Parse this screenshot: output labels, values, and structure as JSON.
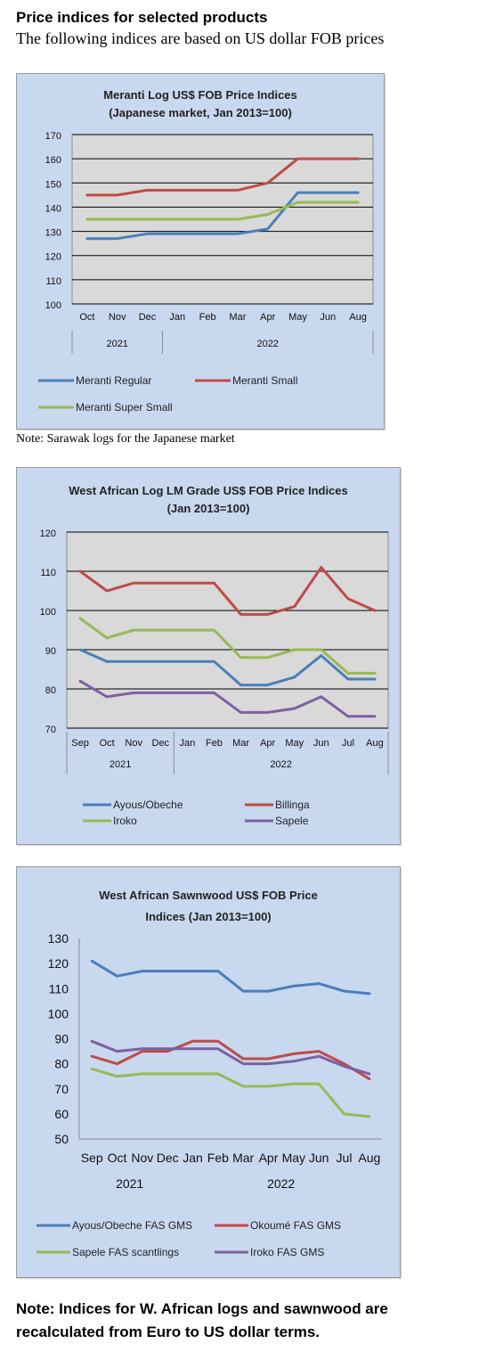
{
  "page": {
    "title": "Price indices for selected products",
    "subtitle": "The following indices are based on US dollar FOB prices",
    "note1": "Note: Sarawak logs for the Japanese market",
    "note2": "Note: Indices for W. African logs and sawnwood are recalculated from Euro to US dollar terms."
  },
  "colors": {
    "blue": "#4a7ebb",
    "red": "#be4b48",
    "green": "#98b954",
    "purple": "#7d60a0",
    "panel_bg": "#c8d8ef",
    "plot_bg": "#d9d9d9"
  },
  "chart_data": [
    {
      "type": "line",
      "title_lines": [
        "Meranti Log US$ FOB Price Indices",
        "(Japanese market, Jan 2013=100)"
      ],
      "categories": [
        "Oct",
        "Nov",
        "Dec",
        "Jan",
        "Feb",
        "Mar",
        "Apr",
        "May",
        "Jun",
        "Aug"
      ],
      "year_groups": [
        {
          "label": "2021",
          "span": 3
        },
        {
          "label": "2022",
          "span": 7
        }
      ],
      "ylim": [
        100,
        170
      ],
      "yticks": [
        100,
        110,
        120,
        130,
        140,
        150,
        160,
        170
      ],
      "grid": true,
      "legend_position": "bottom",
      "series": [
        {
          "name": "Meranti Regular",
          "color": "#4a7ebb",
          "values": [
            127,
            127,
            129,
            129,
            129,
            129,
            131,
            146,
            146,
            146
          ]
        },
        {
          "name": "Meranti Small",
          "color": "#be4b48",
          "values": [
            145,
            145,
            147,
            147,
            147,
            147,
            150,
            160,
            160,
            160
          ]
        },
        {
          "name": "Meranti Super Small",
          "color": "#98b954",
          "values": [
            135,
            135,
            135,
            135,
            135,
            135,
            137,
            142,
            142,
            142
          ]
        }
      ]
    },
    {
      "type": "line",
      "title_lines": [
        "West African Log LM Grade US$ FOB Price Indices",
        "(Jan 2013=100)"
      ],
      "categories": [
        "Sep",
        "Oct",
        "Nov",
        "Dec",
        "Jan",
        "Feb",
        "Mar",
        "Apr",
        "May",
        "Jun",
        "Jul",
        "Aug"
      ],
      "year_groups": [
        {
          "label": "2021",
          "span": 4
        },
        {
          "label": "2022",
          "span": 8
        }
      ],
      "ylim": [
        70,
        120
      ],
      "yticks": [
        70,
        80,
        90,
        100,
        110,
        120
      ],
      "grid": true,
      "legend_position": "bottom",
      "series": [
        {
          "name": "Ayous/Obeche",
          "color": "#4a7ebb",
          "values": [
            90,
            87,
            87,
            87,
            87,
            87,
            81,
            81,
            83,
            88.5,
            82.5,
            82.5
          ]
        },
        {
          "name": "Billinga",
          "color": "#be4b48",
          "values": [
            110,
            105,
            107,
            107,
            107,
            107,
            99,
            99,
            101,
            111,
            103,
            100
          ]
        },
        {
          "name": "Iroko",
          "color": "#98b954",
          "values": [
            98,
            93,
            95,
            95,
            95,
            95,
            88,
            88,
            90,
            90,
            84,
            84
          ]
        },
        {
          "name": "Sapele",
          "color": "#7d60a0",
          "values": [
            82,
            78,
            79,
            79,
            79,
            79,
            74,
            74,
            75,
            78,
            73,
            73
          ]
        }
      ]
    },
    {
      "type": "line",
      "title_lines": [
        "West African Sawnwood US$ FOB Price",
        "Indices (Jan 2013=100)"
      ],
      "categories": [
        "Sep",
        "Oct",
        "Nov",
        "Dec",
        "Jan",
        "Feb",
        "Mar",
        "Apr",
        "May",
        "Jun",
        "Jul",
        "Aug"
      ],
      "year_groups": [
        {
          "label": "2021",
          "span": 4
        },
        {
          "label": "2022",
          "span": 8
        }
      ],
      "ylim": [
        50,
        130
      ],
      "yticks": [
        50,
        60,
        70,
        80,
        90,
        100,
        110,
        120,
        130
      ],
      "grid": false,
      "legend_position": "bottom",
      "series": [
        {
          "name": "Ayous/Obeche  FAS GMS",
          "color": "#4a7ebb",
          "values": [
            121,
            115,
            117,
            117,
            117,
            117,
            109,
            109,
            111,
            112,
            109,
            108
          ]
        },
        {
          "name": "Okoumé  FAS GMS",
          "color": "#be4b48",
          "values": [
            83,
            80,
            85,
            85,
            89,
            89,
            82,
            82,
            84,
            85,
            80,
            74
          ]
        },
        {
          "name": "Sapele FAS scantlings",
          "color": "#98b954",
          "values": [
            78,
            75,
            76,
            76,
            76,
            76,
            71,
            71,
            72,
            72,
            60,
            59
          ]
        },
        {
          "name": "Iroko FAS GMS",
          "color": "#7d60a0",
          "values": [
            89,
            85,
            86,
            86,
            86,
            86,
            80,
            80,
            81,
            83,
            79,
            76
          ]
        }
      ]
    }
  ]
}
